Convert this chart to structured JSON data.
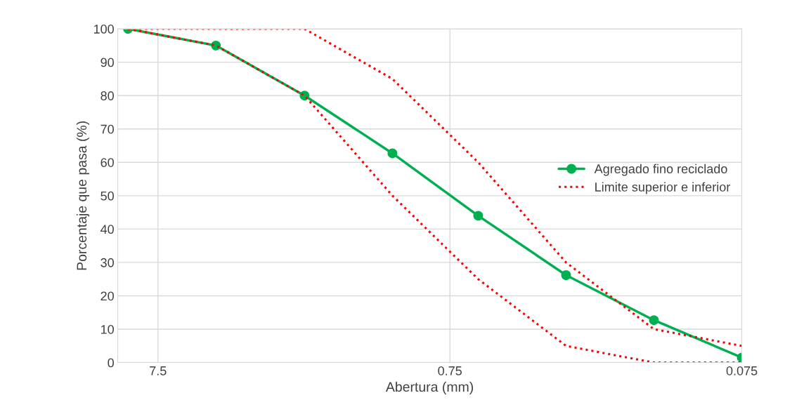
{
  "chart_data": {
    "type": "line",
    "xlabel": "Abertura (mm)",
    "ylabel": "Porcentaje que pasa (%)",
    "x": [
      9.5,
      4.75,
      2.36,
      1.18,
      0.6,
      0.3,
      0.15,
      0.075
    ],
    "series": [
      {
        "name": "Agregado fino reciclado",
        "color": "#00b050",
        "values": [
          100,
          95,
          80,
          62.7,
          44,
          26.2,
          12.7,
          1.5
        ],
        "marker": "circle",
        "line_style": "solid"
      },
      {
        "name": "Limite superior e inferior",
        "color": "#ff0000",
        "values": [
          100,
          100,
          100,
          85,
          60,
          30,
          10,
          5
        ],
        "marker": "none",
        "line_style": "dotted"
      },
      {
        "color": "#ff0000",
        "values": [
          100,
          95,
          80,
          50,
          25,
          5,
          0,
          0
        ],
        "marker": "none",
        "line_style": "dotted"
      }
    ],
    "log": "x",
    "xlim": [
      10.3,
      0.075
    ],
    "xticks": [
      7.5,
      0.75,
      0.075
    ],
    "ylim": [
      0,
      100
    ],
    "yticks": [
      0,
      10,
      20,
      30,
      40,
      50,
      60,
      70,
      80,
      90,
      100
    ],
    "grid": true,
    "legend": "right"
  }
}
